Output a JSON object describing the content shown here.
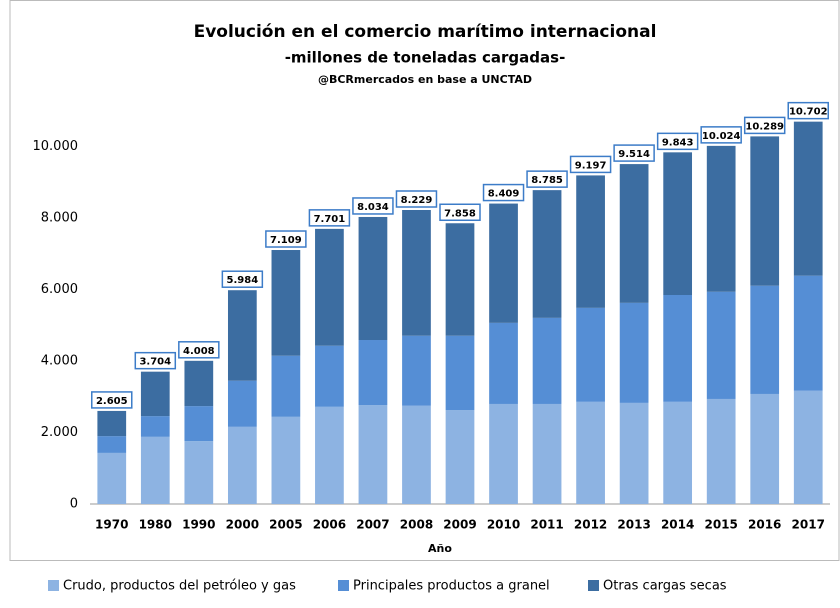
{
  "chart_data": {
    "type": "stacked_bar",
    "title": "Evolución en el comercio marítimo internacional",
    "subtitle": "-millones de toneladas cargadas-",
    "source": "@BCRmercados en base a UNCTAD",
    "x_label": "Año",
    "categories": [
      "1970",
      "1980",
      "1990",
      "2000",
      "2005",
      "2006",
      "2007",
      "2008",
      "2009",
      "2010",
      "2011",
      "2012",
      "2013",
      "2014",
      "2015",
      "2016",
      "2017"
    ],
    "series": [
      {
        "name": "Crudo, productos del petróleo y gas",
        "color": "#8db3e2",
        "values": [
          1430,
          1880,
          1760,
          2160,
          2440,
          2720,
          2770,
          2750,
          2630,
          2800,
          2800,
          2860,
          2830,
          2860,
          2940,
          3080,
          3170
        ]
      },
      {
        "name": "Principales productos a granel",
        "color": "#558ed5",
        "values": [
          470,
          580,
          980,
          1290,
          1710,
          1710,
          1820,
          1960,
          2080,
          2270,
          2410,
          2630,
          2800,
          2990,
          3000,
          3030,
          3220
        ]
      },
      {
        "name": "Otras cargas secas",
        "color": "#3c6da1",
        "values": [
          705,
          1244,
          1268,
          2534,
          2959,
          3271,
          3444,
          3519,
          3148,
          3339,
          3575,
          3707,
          3884,
          3993,
          4084,
          4179,
          4312
        ]
      }
    ],
    "totals": {
      "values": [
        2605,
        3704,
        4008,
        5984,
        7109,
        7701,
        8034,
        8229,
        7858,
        8409,
        8785,
        9197,
        9514,
        9843,
        10024,
        10289,
        10702
      ],
      "value_labels": [
        "2.605",
        "3.704",
        "4.008",
        "5.984",
        "7.109",
        "7.701",
        "8.034",
        "8.229",
        "7.858",
        "8.409",
        "8.785",
        "9.197",
        "9.514",
        "9.843",
        "10.024",
        "10.289",
        "10.702"
      ]
    },
    "ylim": [
      0,
      11000
    ],
    "yticks": [
      0,
      {
        "value": 2000,
        "label": "2.000"
      },
      {
        "value": 4000,
        "label": "4.000"
      },
      {
        "value": 6000,
        "label": "6.000"
      },
      {
        "value": 8000,
        "label": "8.000"
      },
      {
        "value": 10000,
        "label": "10.000"
      }
    ],
    "legend": "bottom"
  }
}
